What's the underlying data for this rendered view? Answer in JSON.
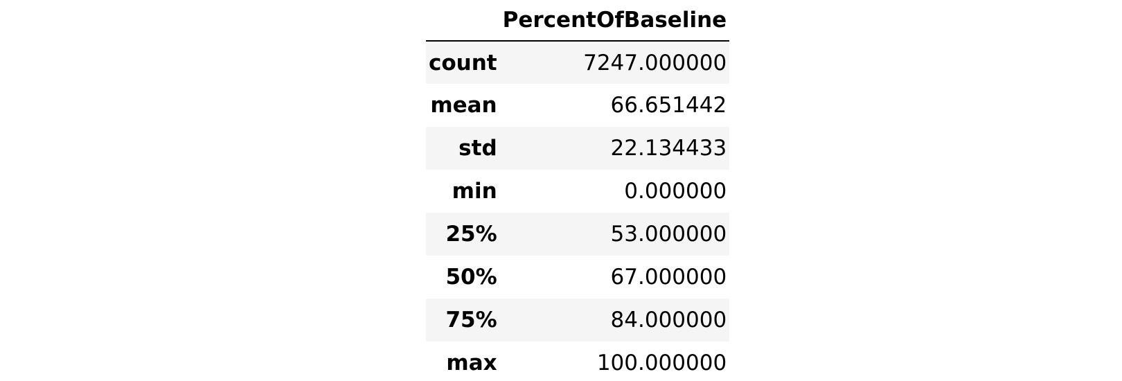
{
  "table": {
    "column_header": "PercentOfBaseline",
    "rows": [
      {
        "label": "count",
        "value": "7247.000000"
      },
      {
        "label": "mean",
        "value": "66.651442"
      },
      {
        "label": "std",
        "value": "22.134433"
      },
      {
        "label": "min",
        "value": "0.000000"
      },
      {
        "label": "25%",
        "value": "53.000000"
      },
      {
        "label": "50%",
        "value": "67.000000"
      },
      {
        "label": "75%",
        "value": "84.000000"
      },
      {
        "label": "max",
        "value": "100.000000"
      }
    ]
  }
}
